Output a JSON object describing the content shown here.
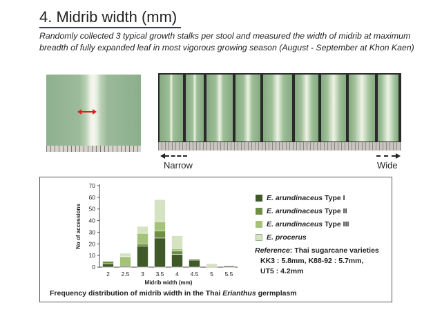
{
  "slide": {
    "title": "4. Midrib width (mm)",
    "description": "Randomly collected 3 typical growth stalks per stool and measured the width of midrib at maximum breadth of fully expanded leaf in most vigorous growing season (August - September at Khon Kaen)",
    "narrow_label": "Narrow",
    "wide_label": "Wide"
  },
  "chart_data": {
    "type": "bar",
    "stacked": true,
    "categories": [
      "2",
      "2.5",
      "3",
      "3.5",
      "4",
      "4.5",
      "5",
      "5.5"
    ],
    "series": [
      {
        "name": "E. arundinaceus Type I",
        "color": "#3f5a28",
        "values": [
          3,
          1,
          18,
          25,
          11,
          6,
          0,
          1
        ]
      },
      {
        "name": "E. arundinaceus Type II",
        "color": "#6e8f46",
        "values": [
          2,
          0,
          2,
          6,
          3,
          1,
          0,
          0
        ]
      },
      {
        "name": "E. arundinaceus Type III",
        "color": "#a4c27a",
        "values": [
          0,
          8,
          9,
          8,
          2,
          0,
          1,
          0
        ]
      },
      {
        "name": "E. procerus",
        "color": "#d6e3c3",
        "values": [
          0,
          3,
          6,
          19,
          11,
          0,
          2,
          0
        ]
      }
    ],
    "xlabel": "Midrib width (mm)",
    "ylabel": "No of accessions",
    "ylim": [
      0,
      70
    ],
    "yticks": [
      "0",
      "10",
      "20",
      "30",
      "40",
      "50",
      "60",
      "70"
    ],
    "grid": false,
    "legend_position": "right",
    "legend": [
      {
        "species": "E. arundinaceus",
        "type": " Type I",
        "color": "#3f5a28"
      },
      {
        "species": "E. arundinaceus",
        "type": " Type II",
        "color": "#6e8f46"
      },
      {
        "species": "E. arundinaceus",
        "type": " Type III",
        "color": "#a4c27a"
      },
      {
        "species": "E. procerus",
        "type": "",
        "color": "#d6e3c3"
      }
    ],
    "reference": {
      "label": "Reference",
      "text": ": Thai sugarcane varieties",
      "line2": "KK3 : 5.8mm, K88-92 : 5.7mm,",
      "line3": "UT5 : 4.2mm"
    },
    "caption": {
      "pre": "Frequency distribution of midrib width in the Thai ",
      "genus": "Erianthus",
      "post": " germplasm"
    }
  }
}
